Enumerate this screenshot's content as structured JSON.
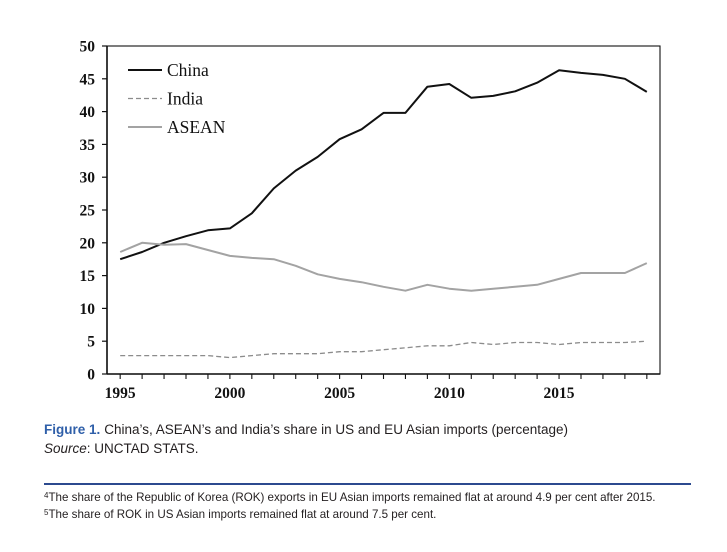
{
  "chart_data": {
    "type": "line",
    "x": [
      1995,
      1996,
      1997,
      1998,
      1999,
      2000,
      2001,
      2002,
      2003,
      2004,
      2005,
      2006,
      2007,
      2008,
      2009,
      2010,
      2011,
      2012,
      2013,
      2014,
      2015,
      2016,
      2017,
      2018,
      2019
    ],
    "series": [
      {
        "name": "China",
        "color": "#111111",
        "dashed": false,
        "values": [
          17.5,
          18.6,
          20.0,
          21.0,
          21.9,
          22.2,
          24.5,
          28.3,
          31.0,
          33.1,
          35.8,
          37.3,
          39.8,
          39.8,
          43.8,
          44.2,
          42.1,
          42.4,
          43.1,
          44.4,
          46.3,
          45.9,
          45.6,
          45.0,
          43.0
        ]
      },
      {
        "name": "India",
        "color": "#8c8c8c",
        "dashed": true,
        "values": [
          2.8,
          2.8,
          2.8,
          2.8,
          2.8,
          2.5,
          2.8,
          3.1,
          3.1,
          3.1,
          3.4,
          3.4,
          3.7,
          4.0,
          4.3,
          4.3,
          4.8,
          4.5,
          4.8,
          4.8,
          4.5,
          4.8,
          4.8,
          4.8,
          5.0
        ]
      },
      {
        "name": "ASEAN",
        "color": "#a3a3a3",
        "dashed": false,
        "values": [
          18.6,
          20.0,
          19.7,
          19.8,
          18.9,
          18.0,
          17.7,
          17.5,
          16.5,
          15.2,
          14.5,
          14.0,
          13.3,
          12.7,
          13.6,
          13.0,
          12.7,
          13.0,
          13.3,
          13.6,
          14.5,
          15.4,
          15.4,
          15.4,
          16.9
        ]
      }
    ],
    "xticks": [
      1995,
      2000,
      2005,
      2010,
      2015
    ],
    "yticks": [
      0,
      5,
      10,
      15,
      20,
      25,
      30,
      35,
      40,
      45,
      50
    ],
    "xlim": [
      1994.4,
      2019.6
    ],
    "ylim": [
      0,
      50
    ],
    "grid": false,
    "legend": "top-left"
  },
  "caption": {
    "label": "Figure 1.",
    "text": "China’s, ASEAN’s and India’s share in US and EU Asian imports (percentage)",
    "source_label": "Source",
    "source_text": ": UNCTAD STATS."
  },
  "footnotes": [
    {
      "mark": "4",
      "text": "The share of the Republic of Korea (ROK) exports in EU Asian imports remained flat at around 4.9 per cent after 2015."
    },
    {
      "mark": "5",
      "text": "The share of ROK in US Asian imports remained flat at around 7.5 per cent."
    }
  ],
  "colors": {
    "caption_label": "#2f5fa9",
    "rule": "#2c4a8f",
    "text": "#231f20"
  }
}
